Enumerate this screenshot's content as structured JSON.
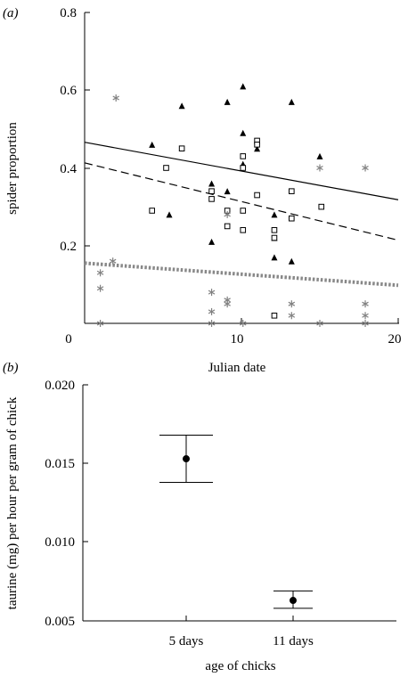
{
  "chart_data": [
    {
      "panel_label": "(a)",
      "type": "scatter",
      "xlabel": "Julian date",
      "ylabel": "spider proportion",
      "xlim": [
        0,
        20
      ],
      "ylim": [
        0,
        0.8
      ],
      "xticks": [
        "0",
        "10",
        "20"
      ],
      "yticks": [
        "0.2",
        "0.4",
        "0.6",
        "0.8"
      ],
      "series": [
        {
          "marker": "filled-triangle",
          "color": "#000000",
          "points": [
            [
              4.3,
              0.46
            ],
            [
              5.4,
              0.28
            ],
            [
              6.2,
              0.56
            ],
            [
              8.1,
              0.36
            ],
            [
              8.1,
              0.21
            ],
            [
              9.1,
              0.34
            ],
            [
              9.1,
              0.57
            ],
            [
              10.1,
              0.61
            ],
            [
              10.1,
              0.49
            ],
            [
              10.1,
              0.41
            ],
            [
              11.0,
              0.47
            ],
            [
              11.0,
              0.45
            ],
            [
              12.1,
              0.28
            ],
            [
              12.1,
              0.22
            ],
            [
              12.1,
              0.17
            ],
            [
              13.2,
              0.57
            ],
            [
              13.2,
              0.16
            ],
            [
              15.0,
              0.43
            ]
          ]
        },
        {
          "marker": "open-square",
          "color": "#000000",
          "points": [
            [
              4.3,
              0.29
            ],
            [
              5.2,
              0.4
            ],
            [
              6.2,
              0.45
            ],
            [
              8.1,
              0.34
            ],
            [
              8.1,
              0.32
            ],
            [
              9.1,
              0.29
            ],
            [
              9.1,
              0.25
            ],
            [
              10.1,
              0.43
            ],
            [
              10.1,
              0.4
            ],
            [
              10.1,
              0.29
            ],
            [
              10.1,
              0.24
            ],
            [
              11.0,
              0.47
            ],
            [
              11.0,
              0.46
            ],
            [
              11.0,
              0.33
            ],
            [
              12.1,
              0.24
            ],
            [
              12.1,
              0.22
            ],
            [
              12.1,
              0.02
            ],
            [
              13.2,
              0.34
            ],
            [
              13.2,
              0.27
            ],
            [
              15.1,
              0.3
            ]
          ]
        },
        {
          "marker": "asterisk",
          "color": "#808080",
          "points": [
            [
              1.0,
              0.13
            ],
            [
              1.0,
              0.09
            ],
            [
              1.0,
              0.0
            ],
            [
              1.8,
              0.16
            ],
            [
              2.0,
              0.58
            ],
            [
              8.1,
              0.08
            ],
            [
              8.1,
              0.03
            ],
            [
              8.1,
              0.0
            ],
            [
              9.1,
              0.28
            ],
            [
              9.1,
              0.06
            ],
            [
              9.1,
              0.05
            ],
            [
              10.1,
              0.0
            ],
            [
              13.2,
              0.05
            ],
            [
              13.2,
              0.02
            ],
            [
              15.0,
              0.4
            ],
            [
              15.0,
              0.0
            ],
            [
              17.9,
              0.4
            ],
            [
              17.9,
              0.05
            ],
            [
              17.9,
              0.02
            ],
            [
              17.9,
              0.0
            ]
          ]
        }
      ],
      "regression_lines": [
        {
          "style": "solid",
          "color": "#000000",
          "x": [
            0,
            20
          ],
          "y": [
            0.466,
            0.318
          ]
        },
        {
          "style": "dashed",
          "color": "#000000",
          "x": [
            0,
            20
          ],
          "y": [
            0.413,
            0.214
          ]
        },
        {
          "style": "dotted",
          "color": "#888888",
          "x": [
            0,
            20
          ],
          "y": [
            0.155,
            0.098
          ]
        }
      ]
    },
    {
      "panel_label": "(b)",
      "type": "errorbar",
      "xlabel": "age of chicks",
      "ylabel": "taurine (mg) per hour per gram of chick",
      "categories": [
        "5 days",
        "11 days"
      ],
      "values": [
        0.0153,
        0.0063
      ],
      "error_low": [
        0.0138,
        0.0058
      ],
      "error_high": [
        0.0168,
        0.0069
      ],
      "ylim": [
        0.005,
        0.02
      ],
      "yticks": [
        "0.005",
        "0.010",
        "0.015",
        "0.020"
      ]
    }
  ]
}
